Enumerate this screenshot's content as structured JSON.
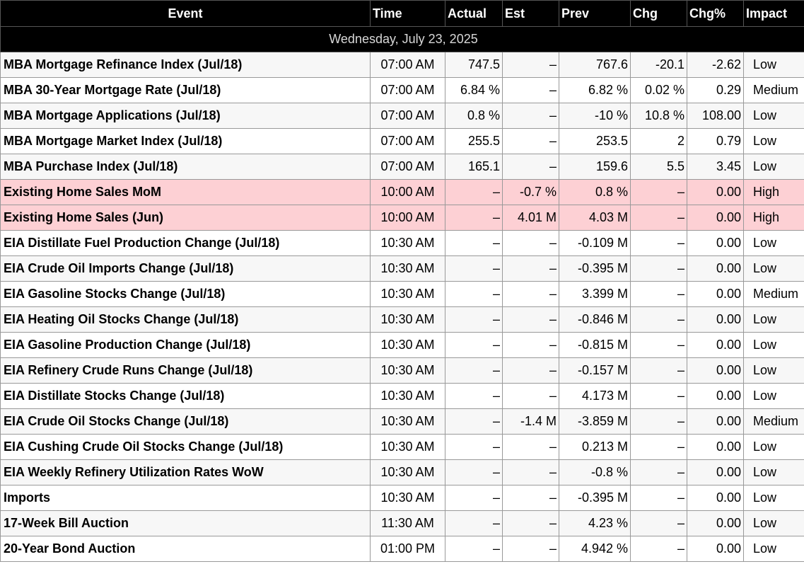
{
  "table": {
    "columns": [
      "Event",
      "Time",
      "Actual",
      "Est",
      "Prev",
      "Chg",
      "Chg%",
      "Impact"
    ],
    "date_label": "Wednesday, July 23, 2025",
    "rows": [
      {
        "event": "MBA Mortgage Refinance Index (Jul/18)",
        "time": "07:00 AM",
        "actual": "747.5",
        "est": "–",
        "prev": "767.6",
        "chg": "-20.1",
        "chg_pct": "-2.62",
        "impact": "Low",
        "impact_level": "low"
      },
      {
        "event": "MBA 30-Year Mortgage Rate (Jul/18)",
        "time": "07:00 AM",
        "actual": "6.84 %",
        "est": "–",
        "prev": "6.82 %",
        "chg": "0.02 %",
        "chg_pct": "0.29",
        "impact": "Medium",
        "impact_level": "medium"
      },
      {
        "event": "MBA Mortgage Applications (Jul/18)",
        "time": "07:00 AM",
        "actual": "0.8 %",
        "est": "–",
        "prev": "-10 %",
        "chg": "10.8 %",
        "chg_pct": "108.00",
        "impact": "Low",
        "impact_level": "low"
      },
      {
        "event": "MBA Mortgage Market Index (Jul/18)",
        "time": "07:00 AM",
        "actual": "255.5",
        "est": "–",
        "prev": "253.5",
        "chg": "2",
        "chg_pct": "0.79",
        "impact": "Low",
        "impact_level": "low"
      },
      {
        "event": "MBA Purchase Index (Jul/18)",
        "time": "07:00 AM",
        "actual": "165.1",
        "est": "–",
        "prev": "159.6",
        "chg": "5.5",
        "chg_pct": "3.45",
        "impact": "Low",
        "impact_level": "low"
      },
      {
        "event": "Existing Home Sales MoM",
        "time": "10:00 AM",
        "actual": "–",
        "est": "-0.7 %",
        "prev": "0.8 %",
        "chg": "–",
        "chg_pct": "0.00",
        "impact": "High",
        "impact_level": "high"
      },
      {
        "event": "Existing Home Sales (Jun)",
        "time": "10:00 AM",
        "actual": "–",
        "est": "4.01 M",
        "prev": "4.03 M",
        "chg": "–",
        "chg_pct": "0.00",
        "impact": "High",
        "impact_level": "high"
      },
      {
        "event": "EIA Distillate Fuel Production Change (Jul/18)",
        "time": "10:30 AM",
        "actual": "–",
        "est": "–",
        "prev": "-0.109 M",
        "chg": "–",
        "chg_pct": "0.00",
        "impact": "Low",
        "impact_level": "low"
      },
      {
        "event": "EIA Crude Oil Imports Change (Jul/18)",
        "time": "10:30 AM",
        "actual": "–",
        "est": "–",
        "prev": "-0.395 M",
        "chg": "–",
        "chg_pct": "0.00",
        "impact": "Low",
        "impact_level": "low"
      },
      {
        "event": "EIA Gasoline Stocks Change (Jul/18)",
        "time": "10:30 AM",
        "actual": "–",
        "est": "–",
        "prev": "3.399 M",
        "chg": "–",
        "chg_pct": "0.00",
        "impact": "Medium",
        "impact_level": "medium"
      },
      {
        "event": "EIA Heating Oil Stocks Change (Jul/18)",
        "time": "10:30 AM",
        "actual": "–",
        "est": "–",
        "prev": "-0.846 M",
        "chg": "–",
        "chg_pct": "0.00",
        "impact": "Low",
        "impact_level": "low"
      },
      {
        "event": "EIA Gasoline Production Change (Jul/18)",
        "time": "10:30 AM",
        "actual": "–",
        "est": "–",
        "prev": "-0.815 M",
        "chg": "–",
        "chg_pct": "0.00",
        "impact": "Low",
        "impact_level": "low"
      },
      {
        "event": "EIA Refinery Crude Runs Change (Jul/18)",
        "time": "10:30 AM",
        "actual": "–",
        "est": "–",
        "prev": "-0.157 M",
        "chg": "–",
        "chg_pct": "0.00",
        "impact": "Low",
        "impact_level": "low"
      },
      {
        "event": "EIA Distillate Stocks Change (Jul/18)",
        "time": "10:30 AM",
        "actual": "–",
        "est": "–",
        "prev": "4.173 M",
        "chg": "–",
        "chg_pct": "0.00",
        "impact": "Low",
        "impact_level": "low"
      },
      {
        "event": "EIA Crude Oil Stocks Change (Jul/18)",
        "time": "10:30 AM",
        "actual": "–",
        "est": "-1.4 M",
        "prev": "-3.859 M",
        "chg": "–",
        "chg_pct": "0.00",
        "impact": "Medium",
        "impact_level": "medium"
      },
      {
        "event": "EIA Cushing Crude Oil Stocks Change (Jul/18)",
        "time": "10:30 AM",
        "actual": "–",
        "est": "–",
        "prev": "0.213 M",
        "chg": "–",
        "chg_pct": "0.00",
        "impact": "Low",
        "impact_level": "low"
      },
      {
        "event": "EIA Weekly Refinery Utilization Rates WoW",
        "time": "10:30 AM",
        "actual": "–",
        "est": "–",
        "prev": "-0.8 %",
        "chg": "–",
        "chg_pct": "0.00",
        "impact": "Low",
        "impact_level": "low"
      },
      {
        "event": "Imports",
        "time": "10:30 AM",
        "actual": "–",
        "est": "–",
        "prev": "-0.395 M",
        "chg": "–",
        "chg_pct": "0.00",
        "impact": "Low",
        "impact_level": "low"
      },
      {
        "event": "17-Week Bill Auction",
        "time": "11:30 AM",
        "actual": "–",
        "est": "–",
        "prev": "4.23 %",
        "chg": "–",
        "chg_pct": "0.00",
        "impact": "Low",
        "impact_level": "low"
      },
      {
        "event": "20-Year Bond Auction",
        "time": "01:00 PM",
        "actual": "–",
        "est": "–",
        "prev": "4.942 %",
        "chg": "–",
        "chg_pct": "0.00",
        "impact": "Low",
        "impact_level": "low"
      }
    ]
  },
  "colors": {
    "header_bg": "#000000",
    "high_impact_row": "#fdd0d4",
    "alt_row": "#f7f7f7"
  }
}
